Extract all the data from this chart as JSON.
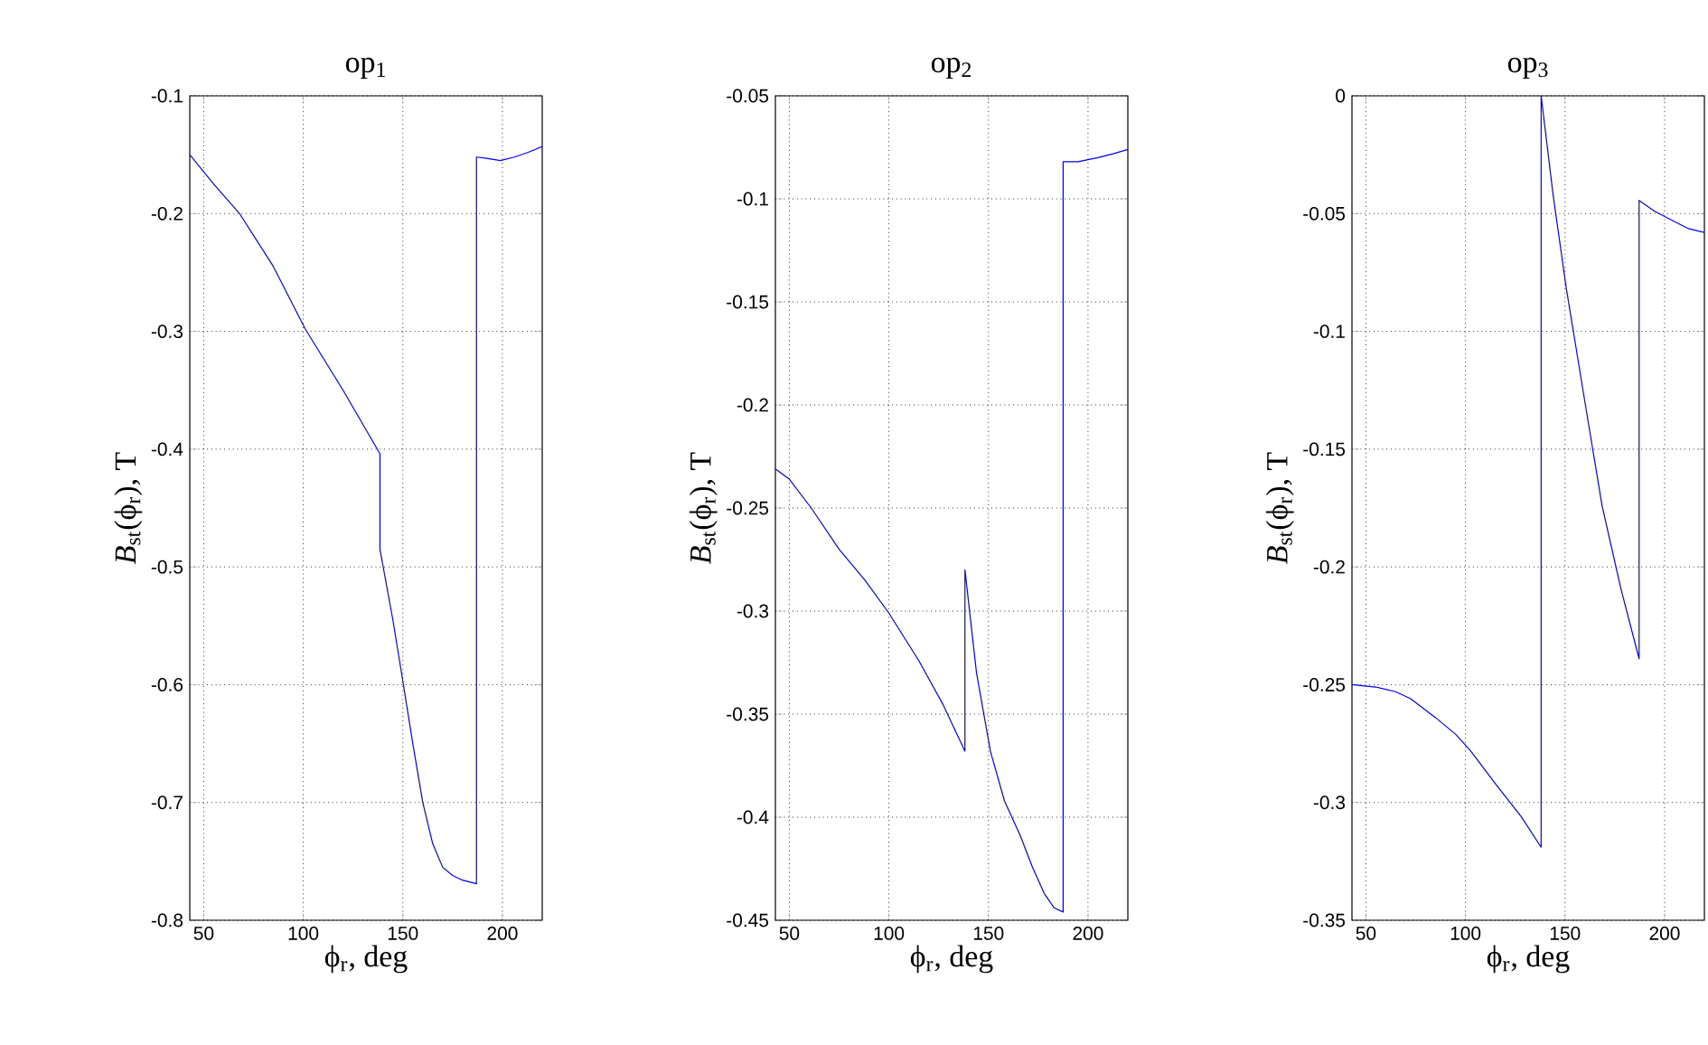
{
  "chart_data": [
    {
      "type": "line",
      "title": "op$_{1}$",
      "xlabel": "ϕ$_{r}$, deg",
      "ylabel": "*B*$_{st}$(ϕ$_{r}$), T",
      "xlim": [
        43,
        220
      ],
      "xticks": [
        50,
        100,
        150,
        200
      ],
      "ylim": [
        -0.8,
        -0.1
      ],
      "yticks": [
        -0.8,
        -0.7,
        -0.6,
        -0.5,
        -0.4,
        -0.3,
        -0.2,
        -0.1
      ],
      "grid": true,
      "series": [
        {
          "color": "#0000ff",
          "x": [
            43,
            55,
            68,
            85,
            101,
            120,
            138.5,
            138.5,
            145,
            150,
            155,
            160,
            165,
            170,
            175,
            180,
            187,
            187,
            192,
            199,
            206,
            213,
            220
          ],
          "values": [
            -0.15,
            -0.175,
            -0.2,
            -0.245,
            -0.298,
            -0.35,
            -0.404,
            -0.485,
            -0.545,
            -0.597,
            -0.65,
            -0.7,
            -0.735,
            -0.755,
            -0.762,
            -0.766,
            -0.769,
            -0.152,
            -0.153,
            -0.155,
            -0.152,
            -0.148,
            -0.143
          ]
        }
      ]
    },
    {
      "type": "line",
      "title": "op$_{2}$",
      "xlabel": "ϕ$_{r}$, deg",
      "ylabel": "*B*$_{st}$(ϕ$_{r}$), T",
      "xlim": [
        43,
        220
      ],
      "xticks": [
        50,
        100,
        150,
        200
      ],
      "ylim": [
        -0.45,
        -0.05
      ],
      "yticks": [
        -0.45,
        -0.4,
        -0.35,
        -0.3,
        -0.25,
        -0.2,
        -0.15,
        -0.1,
        -0.05
      ],
      "grid": true,
      "series": [
        {
          "color": "#0000ff",
          "x": [
            43,
            50,
            61,
            75,
            88,
            100,
            115,
            127,
            138.2,
            138.2,
            144,
            151,
            158,
            166,
            172,
            178,
            183,
            187.5,
            187.5,
            195,
            205,
            213,
            220
          ],
          "values": [
            -0.231,
            -0.236,
            -0.25,
            -0.27,
            -0.285,
            -0.301,
            -0.324,
            -0.345,
            -0.368,
            -0.28,
            -0.33,
            -0.368,
            -0.392,
            -0.409,
            -0.424,
            -0.437,
            -0.444,
            -0.446,
            -0.082,
            -0.082,
            -0.08,
            -0.078,
            -0.076
          ]
        }
      ]
    },
    {
      "type": "line",
      "title": "op$_{3}$",
      "xlabel": "ϕ$_{r}$, deg",
      "ylabel": "*B*$_{st}$(ϕ$_{r}$), T",
      "xlim": [
        43,
        220
      ],
      "xticks": [
        50,
        100,
        150,
        200
      ],
      "ylim": [
        -0.35,
        0
      ],
      "yticks": [
        -0.35,
        -0.3,
        -0.25,
        -0.2,
        -0.15,
        -0.1,
        -0.05,
        0
      ],
      "grid": true,
      "series": [
        {
          "color": "#0000ff",
          "x": [
            43,
            55,
            65,
            72.5,
            85,
            95,
            102.5,
            115,
            128,
            138,
            138,
            144,
            150.6,
            160,
            168.6,
            178,
            187.2,
            187.2,
            195,
            204,
            212,
            220
          ],
          "values": [
            -0.25,
            -0.251,
            -0.253,
            -0.256,
            -0.264,
            -0.271,
            -0.278,
            -0.292,
            -0.306,
            -0.319,
            0,
            -0.042,
            -0.0815,
            -0.13,
            -0.174,
            -0.209,
            -0.239,
            -0.0444,
            -0.049,
            -0.053,
            -0.0564,
            -0.058
          ]
        }
      ]
    }
  ]
}
